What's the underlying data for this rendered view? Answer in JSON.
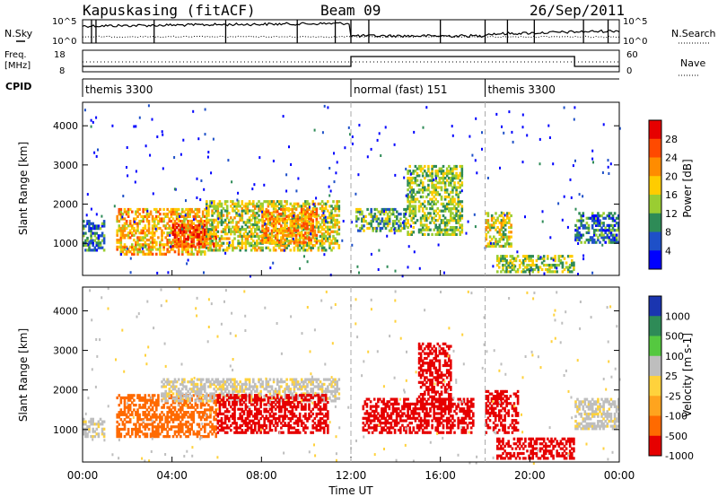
{
  "header": {
    "station": "Kapuskasing (fitACF)",
    "beam": "Beam 09",
    "date": "26/Sep/2011"
  },
  "noise_panel": {
    "left_label": "N.Sky",
    "right_label": "N.Search",
    "ticks_left": [
      "10^5",
      "10^0"
    ],
    "ticks_right": [
      "10^5",
      "10^0"
    ]
  },
  "freq_panel": {
    "left_label_1": "Freq.",
    "left_label_2": "[MHz]",
    "ticks_left": [
      "18",
      "8"
    ],
    "right_label": "Nave",
    "ticks_right": [
      "60",
      "0"
    ]
  },
  "cpid": {
    "label": "CPID",
    "segments": [
      {
        "name": "themis 3300",
        "start_h": 0,
        "end_h": 12
      },
      {
        "name": "normal (fast) 151",
        "start_h": 12,
        "end_h": 18
      },
      {
        "name": "themis 3300",
        "start_h": 18,
        "end_h": 24
      }
    ]
  },
  "time_axis": {
    "label": "Time UT",
    "ticks": [
      "00:00",
      "04:00",
      "08:00",
      "12:00",
      "16:00",
      "20:00",
      "00:00"
    ]
  },
  "chart_data": [
    {
      "type": "heatmap",
      "title": "",
      "xlabel": "Time UT",
      "ylabel": "Slant Range [km]",
      "xlim": [
        0,
        24
      ],
      "ylim": [
        180,
        4600
      ],
      "yticks": [
        "1000",
        "2000",
        "3000",
        "4000"
      ],
      "colorbar": {
        "label": "Power [dB]",
        "ticks": [
          "28",
          "24",
          "20",
          "16",
          "12",
          "8",
          "4"
        ],
        "colors": [
          "#e60000",
          "#ff4a00",
          "#ff8c00",
          "#ffcc00",
          "#9acd32",
          "#2e8b57",
          "#1e50c8",
          "#0000ff"
        ]
      },
      "approx_regions": [
        {
          "t0": 0.0,
          "t1": 1.0,
          "r0": 800,
          "r1": 1600,
          "value": 8
        },
        {
          "t0": 1.5,
          "t1": 5.5,
          "r0": 700,
          "r1": 1900,
          "value": 20
        },
        {
          "t0": 4.0,
          "t1": 6.0,
          "r0": 900,
          "r1": 1500,
          "value": 26
        },
        {
          "t0": 5.5,
          "t1": 11.5,
          "r0": 800,
          "r1": 2100,
          "value": 16
        },
        {
          "t0": 8.0,
          "t1": 10.5,
          "r0": 1000,
          "r1": 1900,
          "value": 22
        },
        {
          "t0": 12.2,
          "t1": 14.5,
          "r0": 1300,
          "r1": 1900,
          "value": 12
        },
        {
          "t0": 14.5,
          "t1": 17.0,
          "r0": 1200,
          "r1": 3000,
          "value": 14
        },
        {
          "t0": 18.0,
          "t1": 19.2,
          "r0": 900,
          "r1": 1800,
          "value": 16
        },
        {
          "t0": 18.5,
          "t1": 22.0,
          "r0": 250,
          "r1": 700,
          "value": 14
        },
        {
          "t0": 22.0,
          "t1": 24.0,
          "r0": 1000,
          "r1": 1800,
          "value": 8
        }
      ]
    },
    {
      "type": "heatmap",
      "title": "",
      "xlabel": "Time UT",
      "ylabel": "Slant Range [km]",
      "xlim": [
        0,
        24
      ],
      "ylim": [
        180,
        4600
      ],
      "yticks": [
        "1000",
        "2000",
        "3000",
        "4000"
      ],
      "colorbar": {
        "label": "Velocity [m s-1]",
        "ticks": [
          "1000",
          "500",
          "100",
          "25",
          "-25",
          "-100",
          "-500",
          "-1000"
        ],
        "colors": [
          "#1a35b0",
          "#2e8b57",
          "#55c840",
          "#bebebe",
          "#ffd23c",
          "#ffa41e",
          "#ff6a00",
          "#e60000"
        ]
      },
      "approx_regions": [
        {
          "t0": 0.0,
          "t1": 1.0,
          "r0": 800,
          "r1": 1300,
          "value": 0
        },
        {
          "t0": 1.5,
          "t1": 6.0,
          "r0": 800,
          "r1": 1900,
          "value": -100
        },
        {
          "t0": 3.5,
          "t1": 11.5,
          "r0": 1700,
          "r1": 2300,
          "value": 0
        },
        {
          "t0": 6.0,
          "t1": 11.0,
          "r0": 900,
          "r1": 1900,
          "value": -150
        },
        {
          "t0": 12.5,
          "t1": 17.5,
          "r0": 900,
          "r1": 1800,
          "value": -200
        },
        {
          "t0": 15.0,
          "t1": 16.5,
          "r0": 1500,
          "r1": 3200,
          "value": -600
        },
        {
          "t0": 18.0,
          "t1": 19.5,
          "r0": 900,
          "r1": 2000,
          "value": -600
        },
        {
          "t0": 18.5,
          "t1": 22.0,
          "r0": 250,
          "r1": 800,
          "value": -200
        },
        {
          "t0": 22.0,
          "t1": 24.0,
          "r0": 1000,
          "r1": 1800,
          "value": 0
        }
      ]
    }
  ]
}
